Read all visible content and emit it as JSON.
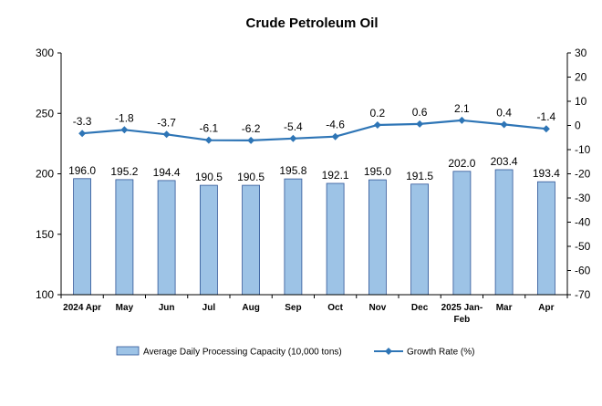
{
  "chart_data": {
    "type": "bar",
    "title": "Crude Petroleum Oil",
    "categories": [
      "2024 Apr",
      "May",
      "Jun",
      "Jul",
      "Aug",
      "Sep",
      "Oct",
      "Nov",
      "Dec",
      "2025 Jan-Feb",
      "Mar",
      "Apr"
    ],
    "series": [
      {
        "name": "Average Daily Processing Capacity (10,000 tons)",
        "type": "bar",
        "axis": "left",
        "values": [
          196.0,
          195.2,
          194.4,
          190.5,
          190.5,
          195.8,
          192.1,
          195.0,
          191.5,
          202.0,
          203.4,
          193.4
        ],
        "labels": [
          "196.0",
          "195.2",
          "194.4",
          "190.5",
          "190.5",
          "195.8",
          "192.1",
          "195.0",
          "191.5",
          "202.0",
          "203.4",
          "193.4"
        ]
      },
      {
        "name": "Growth Rate (%)",
        "type": "line",
        "axis": "right",
        "values": [
          -3.3,
          -1.8,
          -3.7,
          -6.1,
          -6.2,
          -5.4,
          -4.6,
          0.2,
          0.6,
          2.1,
          0.4,
          -1.4
        ],
        "labels": [
          "-3.3",
          "-1.8",
          "-3.7",
          "-6.1",
          "-6.2",
          "-5.4",
          "-4.6",
          "0.2",
          "0.6",
          "2.1",
          "0.4",
          "-1.4"
        ]
      }
    ],
    "y_left": {
      "min": 100,
      "max": 300,
      "ticks": [
        "100",
        "150",
        "200",
        "250",
        "300"
      ]
    },
    "y_right": {
      "min": -70,
      "max": 30,
      "ticks": [
        "-70",
        "-60",
        "-50",
        "-40",
        "-30",
        "-20",
        "-10",
        "0",
        "10",
        "20",
        "30"
      ]
    },
    "grid": false,
    "legend_position": "bottom",
    "colors": {
      "bar_fill": "#9dc3e6",
      "bar_stroke": "#2f5597",
      "line": "#2e75b6",
      "axis": "#000000"
    }
  }
}
